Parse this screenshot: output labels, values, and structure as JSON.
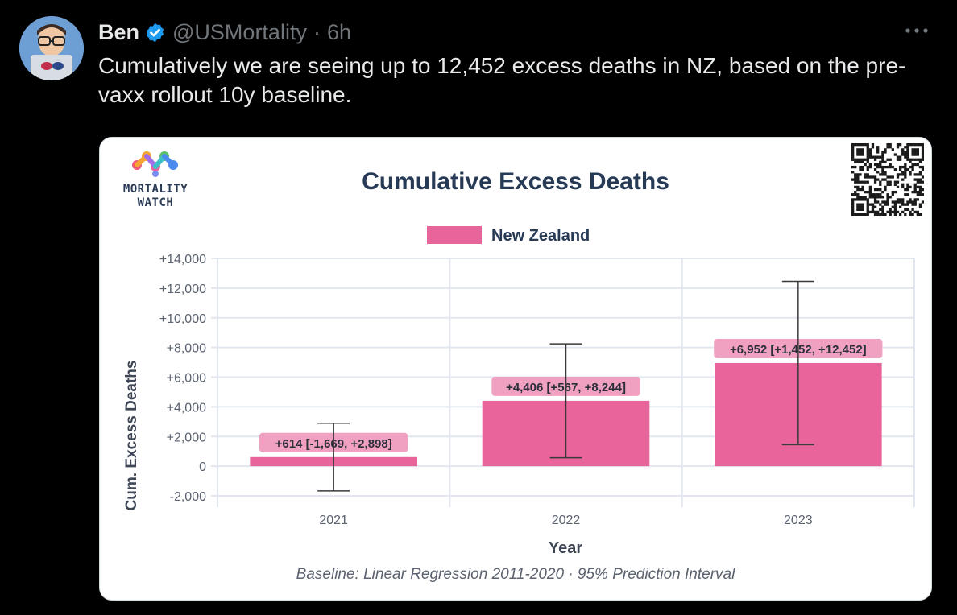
{
  "tweet": {
    "author_name": "Ben",
    "handle": "@USMortality",
    "separator": "·",
    "time": "6h",
    "text": "Cumulatively we are seeing up to 12,452 excess deaths in NZ, based on the pre-vaxx rollout 10y baseline."
  },
  "icons": {
    "verified": "verified-badge-icon",
    "more": "more-options-icon"
  },
  "colors": {
    "background": "#000000",
    "verified_blue": "#1d9bf0",
    "bar_fill": "#e8649b",
    "label_bg": "#f0a0c0",
    "title_color": "#273a55"
  },
  "card": {
    "logo_text_line1": "MORTALITY",
    "logo_text_line2": "WATCH"
  },
  "chart_data": {
    "type": "bar",
    "title": "Cumulative Excess Deaths",
    "legend": [
      "New Zealand"
    ],
    "legend_position": "top",
    "xlabel": "Year",
    "ylabel": "Cum. Excess Deaths",
    "categories": [
      "2021",
      "2022",
      "2023"
    ],
    "series": [
      {
        "name": "New Zealand",
        "values": [
          614,
          4406,
          6952
        ],
        "lower": [
          -1669,
          567,
          1452
        ],
        "upper": [
          2898,
          8244,
          12452
        ],
        "labels": [
          "+614 [-1,669, +2,898]",
          "+4,406 [+567, +8,244]",
          "+6,952 [+1,452, +12,452]"
        ]
      }
    ],
    "ylim": [
      -2000,
      14000
    ],
    "yticks": [
      {
        "v": 14000,
        "label": "+14,000"
      },
      {
        "v": 12000,
        "label": "+12,000"
      },
      {
        "v": 10000,
        "label": "+10,000"
      },
      {
        "v": 8000,
        "label": "+8,000"
      },
      {
        "v": 6000,
        "label": "+6,000"
      },
      {
        "v": 4000,
        "label": "+4,000"
      },
      {
        "v": 2000,
        "label": "+2,000"
      },
      {
        "v": 0,
        "label": "0"
      },
      {
        "v": -2000,
        "label": "-2,000"
      }
    ],
    "grid": true,
    "footnote": "Baseline: Linear Regression 2011-2020 · 95% Prediction Interval"
  }
}
